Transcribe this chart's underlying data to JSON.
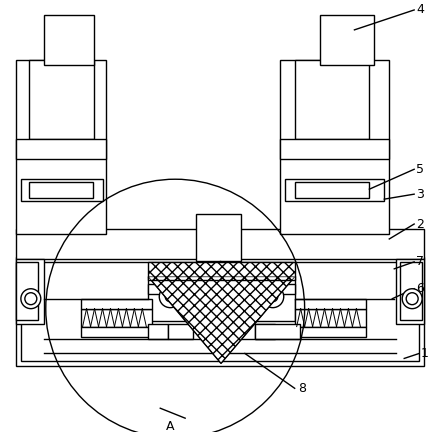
{
  "bg_color": "#ffffff",
  "lc": "#000000",
  "lw": 1.0,
  "fig_w": 4.43,
  "fig_h": 4.34,
  "dpi": 100
}
